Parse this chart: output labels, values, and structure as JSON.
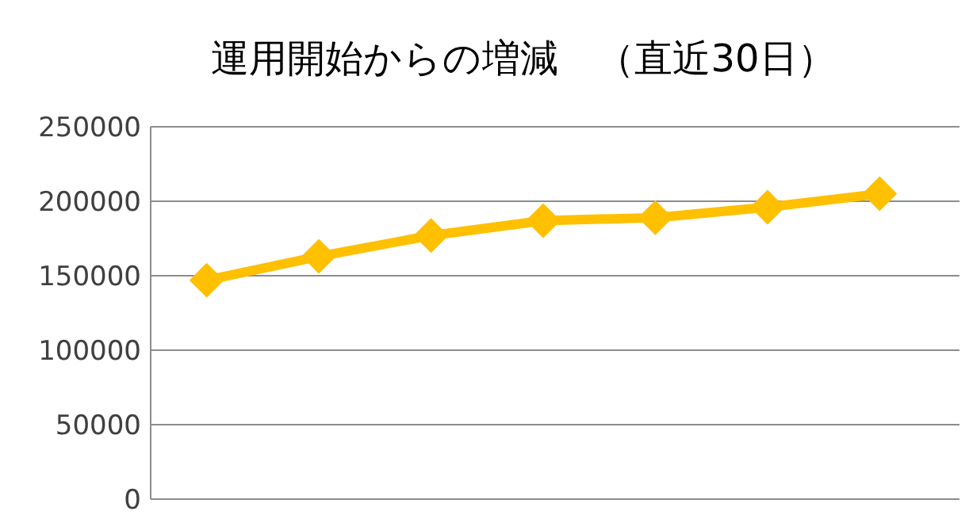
{
  "chart_data": {
    "type": "line",
    "title": "運用開始からの増減　（直近30日）",
    "categories": [
      null,
      null,
      null,
      null,
      null,
      null,
      null
    ],
    "series": [
      {
        "color": "#ffc000",
        "values": [
          147000,
          163000,
          177000,
          187000,
          189000,
          196000,
          205000
        ]
      }
    ],
    "ylim": [
      0,
      250000
    ],
    "yticks": [
      0,
      50000,
      100000,
      150000,
      200000,
      250000
    ],
    "grid": "y",
    "marker": "diamond",
    "tick_labels": "y"
  }
}
